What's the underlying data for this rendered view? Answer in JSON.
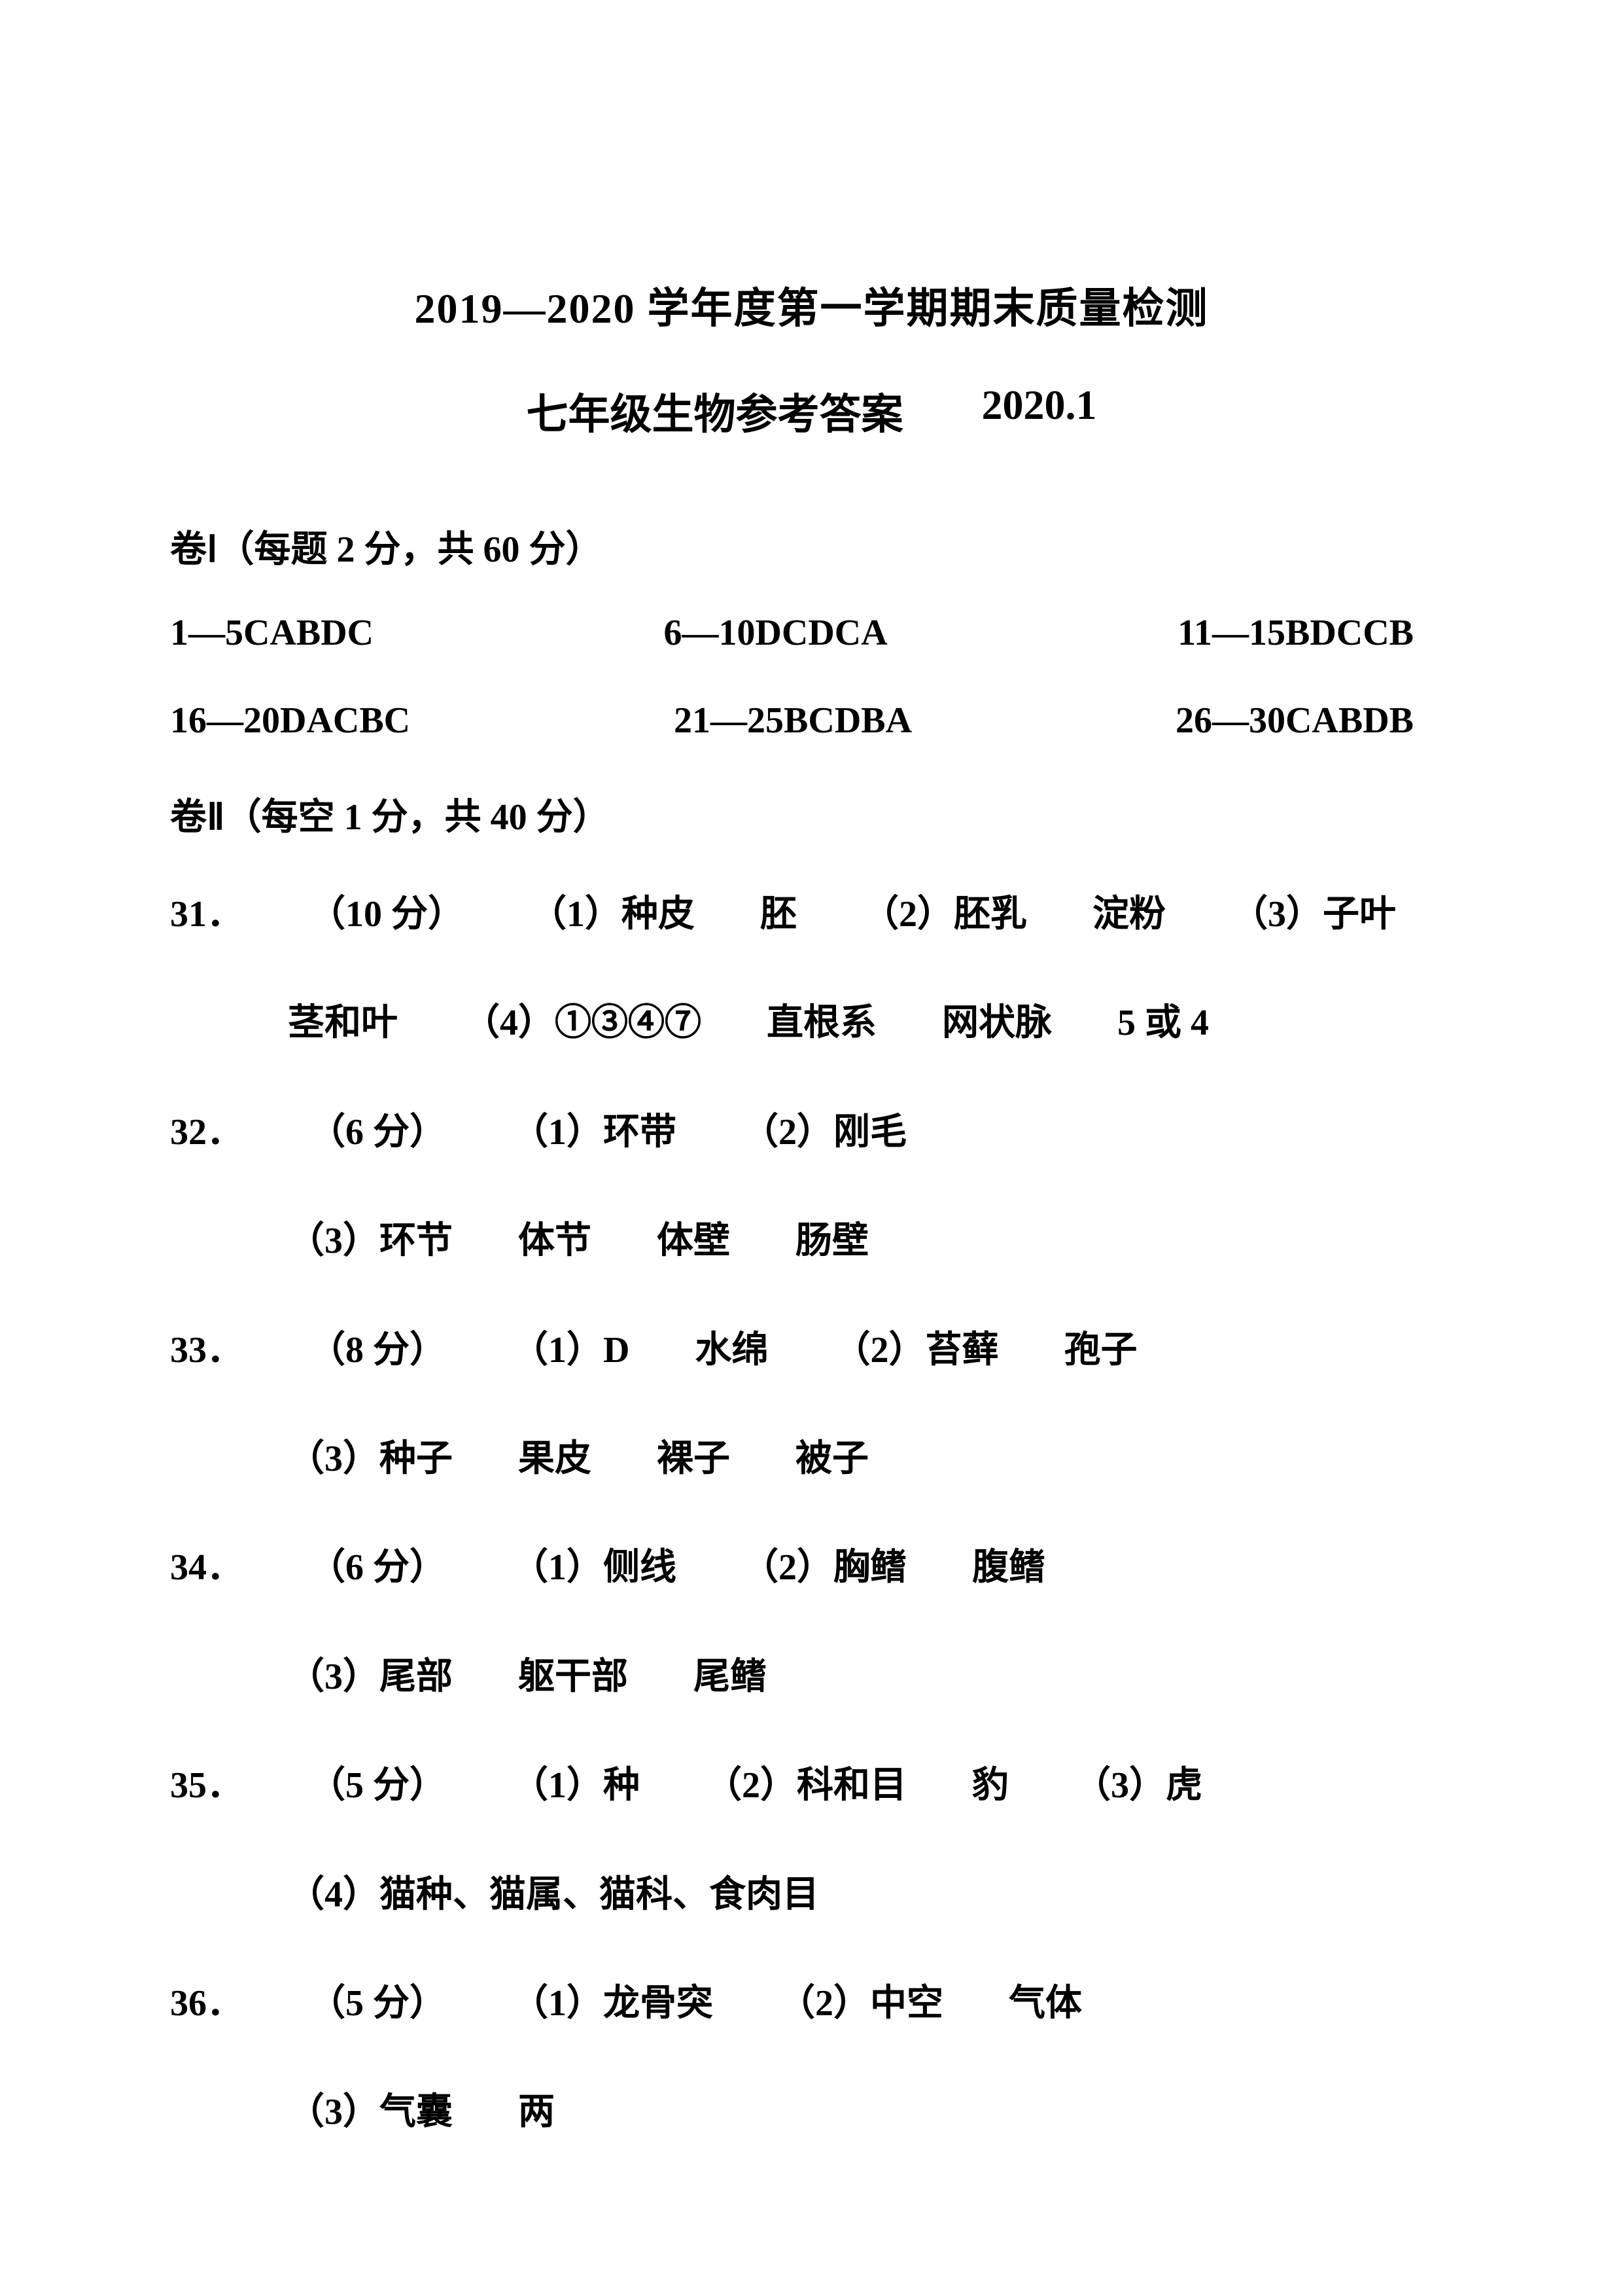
{
  "title": "2019—2020 学年度第一学期期末质量检测",
  "subtitle": "七年级生物参考答案",
  "date": "2020.1",
  "part1": {
    "header": "卷Ⅰ（每题 2 分，共 60 分）",
    "rows": [
      [
        "1—5CABDC",
        "6—10DCDCA",
        "11—15BDCCB"
      ],
      [
        "16—20DACBC",
        "21—25BCDBA",
        "26—30CABDB"
      ]
    ]
  },
  "part2": {
    "header": "卷Ⅱ（每空 1 分，共 40 分）",
    "q31": {
      "num": "31．",
      "pts": "（10 分）",
      "l1": [
        "（1）种皮",
        "胚",
        "（2）胚乳",
        "淀粉",
        "（3）子叶"
      ],
      "l2": [
        "茎和叶",
        "（4）①③④⑦",
        "直根系",
        "网状脉",
        "5 或 4"
      ]
    },
    "q32": {
      "num": "32．",
      "pts": "（6 分）",
      "l1": [
        "（1）环带",
        "（2）刚毛"
      ],
      "l2": [
        "（3）环节",
        "体节",
        "体壁",
        "肠壁"
      ]
    },
    "q33": {
      "num": "33．",
      "pts": "（8 分）",
      "l1": [
        "（1）D",
        "水绵",
        "（2）苔藓",
        "孢子"
      ],
      "l2": [
        "（3）种子",
        "果皮",
        "裸子",
        "被子"
      ]
    },
    "q34": {
      "num": "34．",
      "pts": "（6 分）",
      "l1": [
        "（1）侧线",
        "（2）胸鳍",
        "腹鳍"
      ],
      "l2": [
        "（3）尾部",
        "躯干部",
        "尾鳍"
      ]
    },
    "q35": {
      "num": "35．",
      "pts": "（5 分）",
      "l1": [
        "（1）种",
        "（2）科和目",
        "豹",
        "（3）虎"
      ],
      "l2": [
        "（4）猫种、猫属、猫科、食肉目"
      ]
    },
    "q36": {
      "num": "36．",
      "pts": "（5 分）",
      "l1": [
        "（1）龙骨突",
        "（2）中空",
        "气体"
      ],
      "l2": [
        "（3）气囊",
        "两"
      ]
    }
  }
}
